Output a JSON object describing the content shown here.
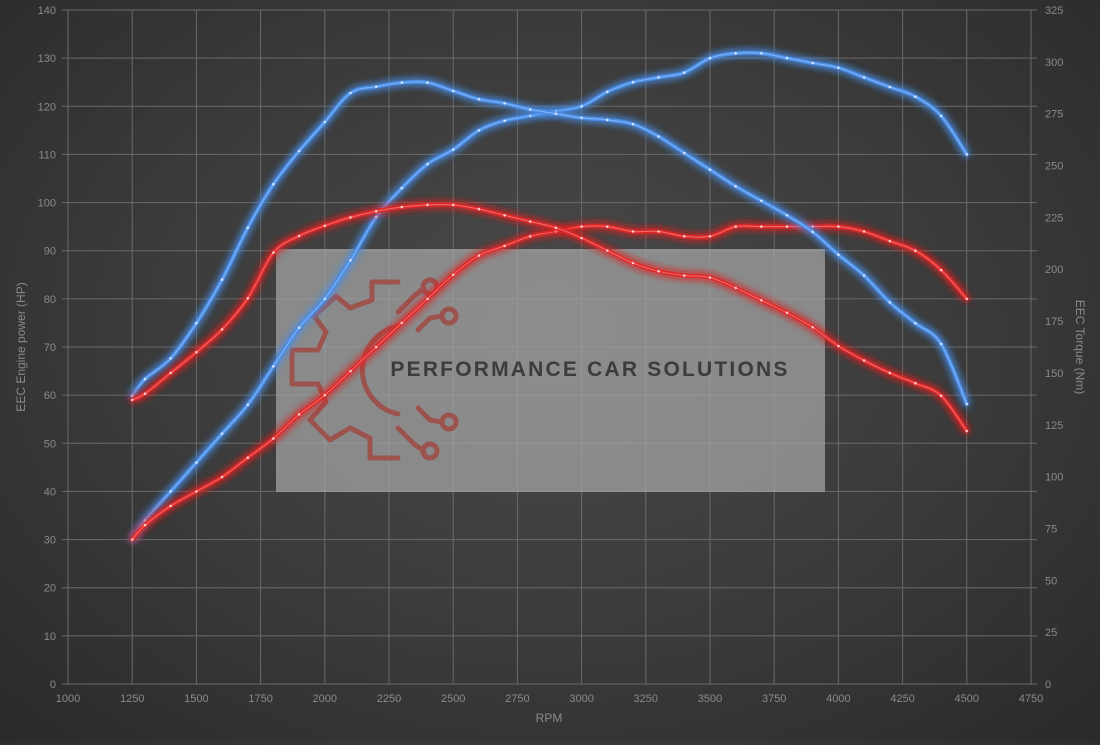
{
  "chart_data": {
    "type": "line",
    "xlabel": "RPM",
    "ylabel_left": "EEC Engine power (HP)",
    "ylabel_right": "EEC Torque (Nm)",
    "xlim": [
      1000,
      4750
    ],
    "ylim_left": [
      0,
      140
    ],
    "ylim_right": [
      0,
      325
    ],
    "grid": true,
    "x_ticks": [
      "1000",
      "1250",
      "1500",
      "1750",
      "2000",
      "2250",
      "2500",
      "2750",
      "3000",
      "3250",
      "3500",
      "3750",
      "4000",
      "4250",
      "4500",
      "4750"
    ],
    "y_ticks_left": [
      "0",
      "10",
      "20",
      "30",
      "40",
      "50",
      "60",
      "70",
      "80",
      "90",
      "100",
      "110",
      "120",
      "130",
      "140"
    ],
    "y_ticks_right": [
      "0",
      "25",
      "50",
      "75",
      "100",
      "125",
      "150",
      "175",
      "200",
      "225",
      "250",
      "275",
      "300",
      "325"
    ],
    "series": [
      {
        "axis": "left",
        "color": "#4a8ee8",
        "points": [
          [
            1250,
            30
          ],
          [
            1300,
            34
          ],
          [
            1400,
            40
          ],
          [
            1500,
            46
          ],
          [
            1600,
            52
          ],
          [
            1700,
            58
          ],
          [
            1800,
            66
          ],
          [
            1900,
            74
          ],
          [
            2000,
            80
          ],
          [
            2100,
            88
          ],
          [
            2200,
            97
          ],
          [
            2300,
            103
          ],
          [
            2400,
            108
          ],
          [
            2500,
            111
          ],
          [
            2600,
            115
          ],
          [
            2700,
            117
          ],
          [
            2800,
            118
          ],
          [
            2900,
            119
          ],
          [
            3000,
            120
          ],
          [
            3100,
            123
          ],
          [
            3200,
            125
          ],
          [
            3300,
            126
          ],
          [
            3400,
            127
          ],
          [
            3500,
            130
          ],
          [
            3600,
            131
          ],
          [
            3700,
            131
          ],
          [
            3800,
            130
          ],
          [
            3900,
            129
          ],
          [
            4000,
            128
          ],
          [
            4100,
            126
          ],
          [
            4200,
            124
          ],
          [
            4300,
            122
          ],
          [
            4400,
            118
          ],
          [
            4500,
            110
          ]
        ]
      },
      {
        "axis": "left",
        "color": "#e02828",
        "points": [
          [
            1250,
            30
          ],
          [
            1300,
            33
          ],
          [
            1400,
            37
          ],
          [
            1500,
            40
          ],
          [
            1600,
            43
          ],
          [
            1700,
            47
          ],
          [
            1800,
            51
          ],
          [
            1900,
            56
          ],
          [
            2000,
            60
          ],
          [
            2100,
            65
          ],
          [
            2200,
            70
          ],
          [
            2300,
            75
          ],
          [
            2400,
            80
          ],
          [
            2500,
            85
          ],
          [
            2600,
            89
          ],
          [
            2700,
            91
          ],
          [
            2800,
            93
          ],
          [
            2900,
            94
          ],
          [
            3000,
            95
          ],
          [
            3100,
            95
          ],
          [
            3200,
            94
          ],
          [
            3300,
            94
          ],
          [
            3400,
            93
          ],
          [
            3500,
            93
          ],
          [
            3600,
            95
          ],
          [
            3700,
            95
          ],
          [
            3800,
            95
          ],
          [
            3900,
            95
          ],
          [
            4000,
            95
          ],
          [
            4100,
            94
          ],
          [
            4200,
            92
          ],
          [
            4300,
            90
          ],
          [
            4400,
            86
          ],
          [
            4500,
            80
          ]
        ]
      },
      {
        "axis": "right",
        "color": "#4a8ee8",
        "points": [
          [
            1250,
            139
          ],
          [
            1300,
            147
          ],
          [
            1400,
            157
          ],
          [
            1500,
            174
          ],
          [
            1600,
            195
          ],
          [
            1700,
            220
          ],
          [
            1800,
            241
          ],
          [
            1900,
            257
          ],
          [
            2000,
            271
          ],
          [
            2100,
            285
          ],
          [
            2200,
            288
          ],
          [
            2300,
            290
          ],
          [
            2400,
            290
          ],
          [
            2500,
            286
          ],
          [
            2600,
            282
          ],
          [
            2700,
            280
          ],
          [
            2800,
            277
          ],
          [
            2900,
            275
          ],
          [
            3000,
            273
          ],
          [
            3100,
            272
          ],
          [
            3200,
            270
          ],
          [
            3300,
            264
          ],
          [
            3400,
            256
          ],
          [
            3500,
            248
          ],
          [
            3600,
            240
          ],
          [
            3700,
            233
          ],
          [
            3800,
            226
          ],
          [
            3900,
            218
          ],
          [
            4000,
            207
          ],
          [
            4100,
            197
          ],
          [
            4200,
            184
          ],
          [
            4300,
            174
          ],
          [
            4400,
            164
          ],
          [
            4500,
            135
          ]
        ]
      },
      {
        "axis": "right",
        "color": "#e02828",
        "points": [
          [
            1250,
            137
          ],
          [
            1300,
            140
          ],
          [
            1400,
            150
          ],
          [
            1500,
            160
          ],
          [
            1600,
            171
          ],
          [
            1700,
            186
          ],
          [
            1800,
            208
          ],
          [
            1900,
            216
          ],
          [
            2000,
            221
          ],
          [
            2100,
            225
          ],
          [
            2200,
            228
          ],
          [
            2300,
            230
          ],
          [
            2400,
            231
          ],
          [
            2500,
            231
          ],
          [
            2600,
            229
          ],
          [
            2700,
            226
          ],
          [
            2800,
            223
          ],
          [
            2900,
            220
          ],
          [
            3000,
            215
          ],
          [
            3100,
            209
          ],
          [
            3200,
            203
          ],
          [
            3300,
            199
          ],
          [
            3400,
            197
          ],
          [
            3500,
            196
          ],
          [
            3600,
            191
          ],
          [
            3700,
            185
          ],
          [
            3800,
            179
          ],
          [
            3900,
            172
          ],
          [
            4000,
            163
          ],
          [
            4100,
            156
          ],
          [
            4200,
            150
          ],
          [
            4300,
            145
          ],
          [
            4400,
            139
          ],
          [
            4500,
            122
          ]
        ]
      }
    ]
  },
  "watermark": {
    "text": "PERFORMANCE CAR SOLUTIONS",
    "logo_icon": "gear-circuit-logo",
    "logo_color": "#a04a44"
  }
}
